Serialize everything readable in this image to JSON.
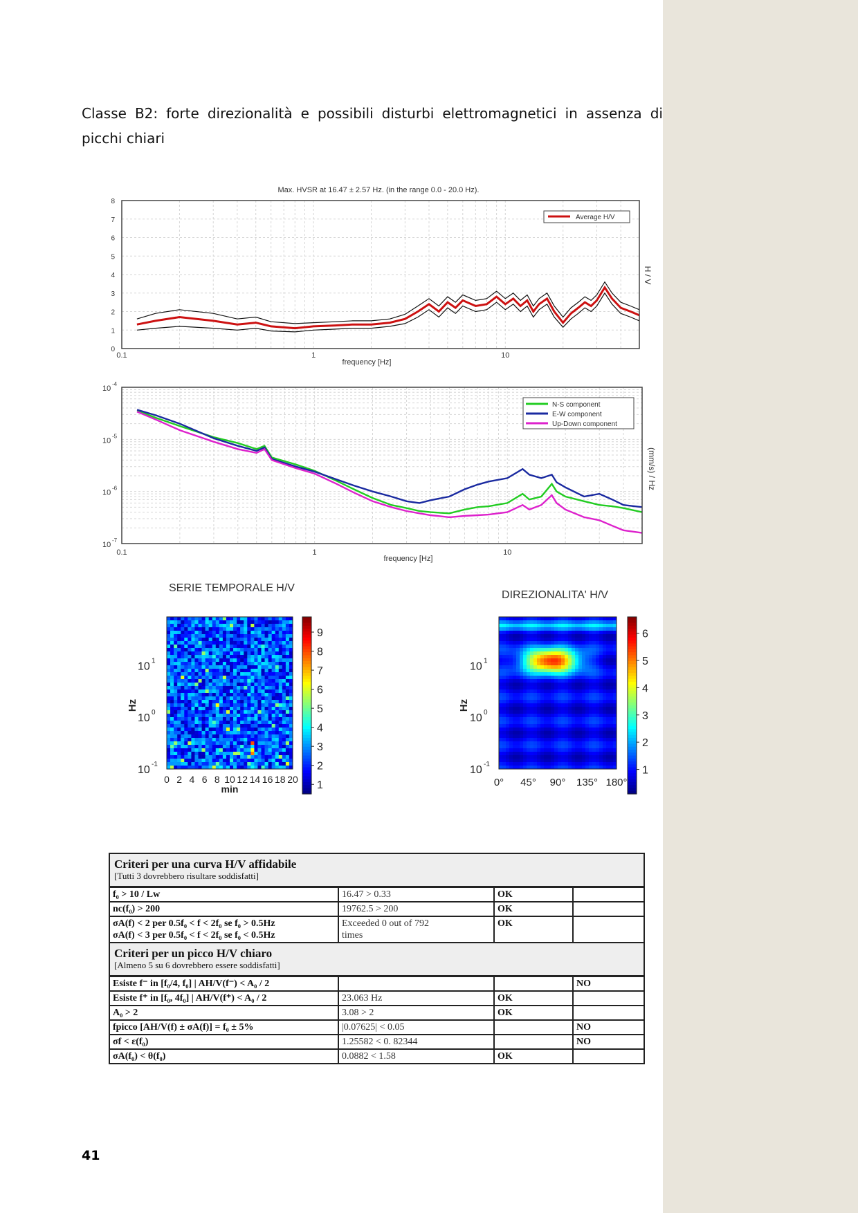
{
  "heading": {
    "words_line1": [
      "Classe",
      "B2:",
      "forte",
      "direzionalità",
      "e",
      "possibili",
      "disturbi",
      "elettromagnetici",
      "in",
      "assenza",
      "di"
    ],
    "line2": "picchi chiari"
  },
  "page_number": "41",
  "chart_data": [
    {
      "type": "line",
      "title": "Max. HVSR at 16.47 ± 2.57 Hz. (in the range 0.0 - 20.0 Hz).",
      "xlabel": "frequency [Hz]",
      "ylabel": "H / V",
      "xscale": "log",
      "xlim": [
        0.1,
        50
      ],
      "ylim": [
        0,
        8
      ],
      "x_ticks": [
        "0.1",
        "1",
        "10"
      ],
      "y_ticks": [
        "0",
        "1",
        "2",
        "3",
        "4",
        "5",
        "6",
        "7",
        "8"
      ],
      "legend_position": "top-right",
      "grid": true,
      "x": [
        0.12,
        0.15,
        0.2,
        0.3,
        0.4,
        0.5,
        0.6,
        0.8,
        1,
        1.3,
        1.6,
        2,
        2.5,
        3,
        3.5,
        4,
        4.5,
        5,
        5.5,
        6,
        7,
        8,
        9,
        10,
        11,
        12,
        13,
        14,
        15,
        16.5,
        18,
        20,
        22,
        24,
        26,
        28,
        30,
        33,
        36,
        40,
        45,
        50
      ],
      "series": [
        {
          "name": "Average H/V",
          "color": "#cc1111",
          "values": [
            1.3,
            1.5,
            1.7,
            1.5,
            1.3,
            1.4,
            1.2,
            1.1,
            1.2,
            1.25,
            1.3,
            1.3,
            1.4,
            1.6,
            2.0,
            2.4,
            2.0,
            2.5,
            2.2,
            2.6,
            2.3,
            2.4,
            2.8,
            2.4,
            2.7,
            2.3,
            2.6,
            2.0,
            2.4,
            2.7,
            2.0,
            1.4,
            1.9,
            2.2,
            2.5,
            2.3,
            2.6,
            3.3,
            2.7,
            2.2,
            2.0,
            1.8
          ]
        },
        {
          "color": "#111111",
          "values": [
            1.6,
            1.9,
            2.1,
            1.9,
            1.6,
            1.7,
            1.45,
            1.35,
            1.4,
            1.45,
            1.5,
            1.5,
            1.6,
            1.85,
            2.3,
            2.7,
            2.3,
            2.8,
            2.5,
            2.9,
            2.6,
            2.7,
            3.1,
            2.7,
            3.0,
            2.6,
            2.9,
            2.3,
            2.7,
            3.0,
            2.3,
            1.7,
            2.2,
            2.5,
            2.8,
            2.6,
            2.9,
            3.6,
            3.0,
            2.5,
            2.3,
            2.1
          ]
        },
        {
          "color": "#111111",
          "values": [
            1.0,
            1.1,
            1.2,
            1.1,
            1.0,
            1.1,
            0.95,
            0.9,
            1.0,
            1.05,
            1.1,
            1.1,
            1.2,
            1.35,
            1.7,
            2.1,
            1.7,
            2.2,
            1.9,
            2.3,
            2.0,
            2.1,
            2.5,
            2.1,
            2.4,
            2.0,
            2.3,
            1.7,
            2.1,
            2.4,
            1.7,
            1.15,
            1.6,
            1.9,
            2.2,
            2.0,
            2.3,
            3.0,
            2.4,
            1.9,
            1.7,
            1.5
          ]
        }
      ]
    },
    {
      "type": "line",
      "xlabel": "frequency [Hz]",
      "ylabel": "(mm/s) / Hz",
      "xscale": "log",
      "yscale": "log",
      "xlim": [
        0.1,
        50
      ],
      "ylim": [
        1e-07,
        0.0001
      ],
      "x_ticks": [
        "0.1",
        "1",
        "10"
      ],
      "y_ticks": [
        {
          "base": "10",
          "exp": "-4"
        },
        {
          "base": "10",
          "exp": "-5"
        },
        {
          "base": "10",
          "exp": "-6"
        },
        {
          "base": "10",
          "exp": "-7"
        }
      ],
      "legend_position": "top-right",
      "grid": true,
      "x": [
        0.12,
        0.15,
        0.2,
        0.3,
        0.4,
        0.5,
        0.55,
        0.6,
        0.8,
        1,
        1.3,
        1.6,
        2,
        2.5,
        3,
        3.5,
        4,
        5,
        6,
        7,
        8,
        10,
        12,
        13,
        15,
        17,
        18,
        20,
        25,
        30,
        35,
        40,
        50
      ],
      "series": [
        {
          "name": "N-S component",
          "color": "#22cc22",
          "values": [
            3.6e-05,
            2.6e-05,
            1.8e-05,
            1.1e-05,
            8.5e-06,
            6.5e-06,
            7.5e-06,
            4.5e-06,
            3.3e-06,
            2.5e-06,
            1.6e-06,
            1.1e-06,
            7.5e-07,
            5.5e-07,
            4.8e-07,
            4.2e-07,
            4e-07,
            3.8e-07,
            4.5e-07,
            5e-07,
            5.2e-07,
            6e-07,
            9e-07,
            7e-07,
            8e-07,
            1.4e-06,
            1e-06,
            8e-07,
            6.5e-07,
            5.5e-07,
            5.2e-07,
            4.8e-07,
            4e-07
          ]
        },
        {
          "name": "E-W component",
          "color": "#1a2aa0",
          "values": [
            3.7e-05,
            2.9e-05,
            2e-05,
            1.05e-05,
            7.5e-06,
            6e-06,
            7e-06,
            4.2e-06,
            3e-06,
            2.4e-06,
            1.7e-06,
            1.3e-06,
            1e-06,
            8e-07,
            6.5e-07,
            6e-07,
            6.8e-07,
            8e-07,
            1.1e-06,
            1.35e-06,
            1.55e-06,
            1.8e-06,
            2.7e-06,
            2.1e-06,
            1.8e-06,
            2.1e-06,
            1.5e-06,
            1.2e-06,
            8e-07,
            9e-07,
            7e-07,
            5.5e-07,
            5e-07
          ]
        },
        {
          "name": "Up-Down component",
          "color": "#dd22cc",
          "values": [
            3.4e-05,
            2.4e-05,
            1.5e-05,
            9e-06,
            6.5e-06,
            5.5e-06,
            6.5e-06,
            4e-06,
            2.8e-06,
            2.2e-06,
            1.4e-06,
            9.5e-07,
            6.5e-07,
            5e-07,
            4.2e-07,
            3.8e-07,
            3.5e-07,
            3.2e-07,
            3.4e-07,
            3.5e-07,
            3.6e-07,
            4e-07,
            5.5e-07,
            4.5e-07,
            5.5e-07,
            8.5e-07,
            6e-07,
            4.5e-07,
            3.2e-07,
            2.8e-07,
            2.2e-07,
            1.8e-07,
            1.6e-07
          ]
        }
      ]
    },
    {
      "type": "heatmap",
      "title": "SERIE TEMPORALE H/V",
      "xlabel": "min",
      "ylabel": "Hz",
      "x_ticks": [
        "0",
        "2",
        "4",
        "6",
        "8",
        "10",
        "12",
        "14",
        "16",
        "18",
        "20"
      ],
      "y_ticks": [
        {
          "base": "10",
          "exp": "1"
        },
        {
          "base": "10",
          "exp": "0"
        },
        {
          "base": "10",
          "exp": "-1"
        }
      ],
      "colorbar_ticks": [
        "1",
        "2",
        "3",
        "4",
        "5",
        "6",
        "7",
        "8",
        "9"
      ],
      "colorbar_range": [
        0.5,
        9.8
      ]
    },
    {
      "type": "heatmap",
      "title": "DIREZIONALITA' H/V",
      "ylabel": "Hz",
      "x_ticks": [
        "0°",
        "45°",
        "90°",
        "135°",
        "180°"
      ],
      "y_ticks": [
        {
          "base": "10",
          "exp": "1"
        },
        {
          "base": "10",
          "exp": "0"
        },
        {
          "base": "10",
          "exp": "-1"
        }
      ],
      "colorbar_ticks": [
        "1",
        "2",
        "3",
        "4",
        "5",
        "6"
      ],
      "colorbar_range": [
        0.1,
        6.6
      ],
      "peak": {
        "angle_deg": 80,
        "value": 6.4
      }
    }
  ],
  "criteria": {
    "section1": {
      "title": "Criteri per una curva H/V affidabile",
      "subtitle": "[Tutti 3 dovrebbero risultare soddisfatti]",
      "rows": [
        {
          "c1": "f₀ > 10 / Lw",
          "c2": "16.47 > 0.33",
          "c3": "OK",
          "c4": ""
        },
        {
          "c1": "nc(f₀) > 200",
          "c2": "19762.5 > 200",
          "c3": "OK",
          "c4": ""
        },
        {
          "c1": "σA(f) < 2 per 0.5f₀ < f < 2f₀ se f₀ > 0.5Hz",
          "c1b": "σA(f) < 3 per 0.5f₀ < f < 2f₀ se f₀ < 0.5Hz",
          "c2": "Exceeded 0 out of 792",
          "c2b": "times",
          "c3": "OK",
          "c4": ""
        }
      ]
    },
    "section2": {
      "title": "Criteri per un picco H/V chiaro",
      "subtitle": "[Almeno 5 su 6 dovrebbero essere soddisfatti]",
      "rows": [
        {
          "c1": "Esiste f⁻ in [f₀/4, f₀] | AH/V(f⁻) < A₀ / 2",
          "c2": "",
          "c3": "",
          "c4": "NO"
        },
        {
          "c1": "Esiste f⁺ in [f₀, 4f₀] | AH/V(f⁺) < A₀ / 2",
          "c2": "23.063 Hz",
          "c3": "OK",
          "c4": ""
        },
        {
          "c1": "A₀ > 2",
          "c2": "3.08 > 2",
          "c3": "OK",
          "c4": ""
        },
        {
          "c1": "fpicco [AH/V(f) ± σA(f)] = f₀ ± 5%",
          "c2": "|0.07625| < 0.05",
          "c3": "",
          "c4": "NO"
        },
        {
          "c1": "σf < ε(f₀)",
          "c2": "1.25582 < 0. 82344",
          "c3": "",
          "c4": "NO"
        },
        {
          "c1": "σA(f₀) < θ(f₀)",
          "c2": "0.0882 < 1.58",
          "c3": "OK",
          "c4": ""
        }
      ]
    }
  }
}
